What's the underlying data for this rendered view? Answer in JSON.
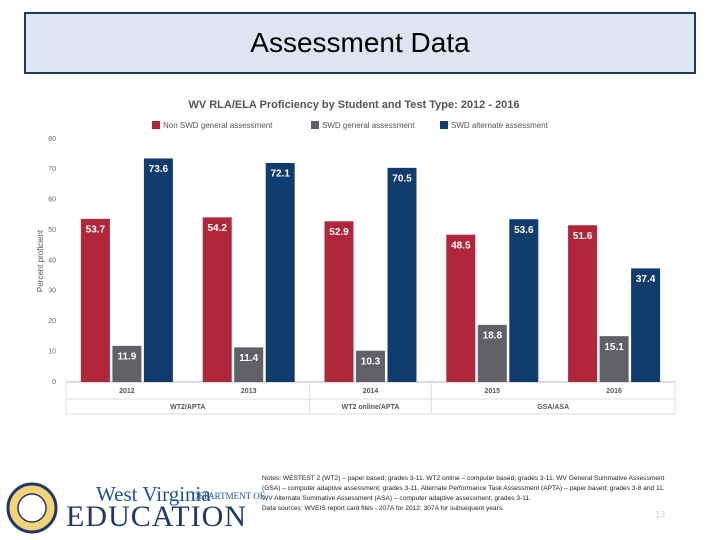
{
  "slide": {
    "title": "Assessment Data"
  },
  "chart_data": {
    "type": "bar",
    "title": "WV RLA/ELA Proficiency by Student and Test Type: 2012 - 2016",
    "y_label": "Percent proficient",
    "categories": [
      "2012",
      "2013",
      "2014",
      "2015",
      "2016"
    ],
    "group_labels": [
      "WT2/APTA",
      null,
      "WT2 online/APTA",
      "GSA/ASA",
      null
    ],
    "series": [
      {
        "name": "Non SWD general assessment",
        "color": "#b0263b",
        "values": [
          53.7,
          54.2,
          52.9,
          48.5,
          51.6
        ]
      },
      {
        "name": "SWD general assessment",
        "color": "#5f6166",
        "values": [
          11.9,
          11.4,
          10.3,
          18.8,
          15.1
        ]
      },
      {
        "name": "SWD alternate assessment",
        "color": "#103d6e",
        "values": [
          73.6,
          72.1,
          70.5,
          53.6,
          37.4
        ]
      }
    ],
    "ylim": [
      0,
      80
    ],
    "yticks": [
      0,
      10,
      20,
      30,
      40,
      50,
      60,
      70,
      80
    ],
    "grid": false,
    "legend": "top"
  },
  "footer": {
    "logo_state": "West Virginia",
    "logo_dept": "DEPARTMENT OF",
    "logo_education": "EDUCATION",
    "notes": [
      "Notes: WESTEST 2 (WT2) – paper based; grades 3-11. WT2 online – computer based; grades 3-11. WV General Summative Assessment (GSA) – computer adaptive assessment; grades 3-11. Alternate Performance Task Assessment (APTA) – paper based; grades 3-8 and 11. WV Alternate Summative Assessment (ASA) – computer adaptive assessment; grades 3-11.",
      "Data sources: WVEIS report card files - 207A for 2012; 307A for subsequent years."
    ],
    "slide_number": "13"
  }
}
